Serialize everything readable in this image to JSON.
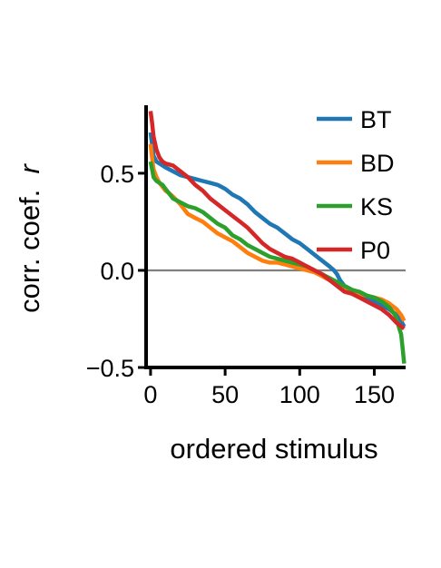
{
  "chart_data": {
    "type": "line",
    "xlabel": "ordered stimulus",
    "ylabel": "corr. coef.",
    "ylabel_symbol": "r",
    "xlim": [
      -3,
      171
    ],
    "ylim": [
      -0.5,
      0.85
    ],
    "xticks": [
      0,
      50,
      100,
      150
    ],
    "xtick_labels": [
      "0",
      "50",
      "100",
      "150"
    ],
    "yticks": [
      -0.5,
      0.0,
      0.5
    ],
    "ytick_labels": [
      "−0.5",
      "0.0",
      "0.5"
    ],
    "reference_line": {
      "y": 0.0,
      "color": "#808080"
    },
    "grid": false,
    "legend_position": "top-right",
    "series": [
      {
        "name": "BT",
        "color": "#1f77b4",
        "x": [
          0,
          1,
          2,
          4,
          6,
          8,
          10,
          15,
          20,
          25,
          30,
          35,
          40,
          45,
          50,
          55,
          60,
          65,
          70,
          75,
          80,
          85,
          90,
          95,
          100,
          105,
          110,
          115,
          120,
          123,
          125,
          127,
          130,
          135,
          140,
          145,
          150,
          155,
          160,
          165,
          168,
          170
        ],
        "y": [
          0.71,
          0.65,
          0.59,
          0.56,
          0.55,
          0.54,
          0.53,
          0.51,
          0.49,
          0.48,
          0.47,
          0.46,
          0.45,
          0.44,
          0.42,
          0.39,
          0.37,
          0.34,
          0.3,
          0.27,
          0.24,
          0.22,
          0.19,
          0.16,
          0.14,
          0.11,
          0.08,
          0.05,
          0.02,
          0.0,
          -0.02,
          -0.05,
          -0.08,
          -0.1,
          -0.12,
          -0.14,
          -0.16,
          -0.18,
          -0.2,
          -0.23,
          -0.26,
          -0.29
        ]
      },
      {
        "name": "BD",
        "color": "#ff7f0e",
        "x": [
          0,
          1,
          2,
          4,
          6,
          8,
          10,
          12,
          15,
          20,
          25,
          30,
          35,
          40,
          45,
          50,
          55,
          60,
          65,
          70,
          75,
          80,
          85,
          90,
          95,
          100,
          105,
          110,
          115,
          120,
          125,
          130,
          135,
          140,
          145,
          150,
          155,
          160,
          165,
          168,
          170
        ],
        "y": [
          0.65,
          0.58,
          0.52,
          0.48,
          0.45,
          0.43,
          0.41,
          0.4,
          0.38,
          0.34,
          0.29,
          0.27,
          0.25,
          0.22,
          0.19,
          0.17,
          0.15,
          0.12,
          0.09,
          0.07,
          0.05,
          0.04,
          0.04,
          0.03,
          0.02,
          0.01,
          0.0,
          -0.01,
          -0.03,
          -0.05,
          -0.07,
          -0.09,
          -0.11,
          -0.12,
          -0.13,
          -0.14,
          -0.15,
          -0.17,
          -0.2,
          -0.23,
          -0.26
        ]
      },
      {
        "name": "KS",
        "color": "#2ca02c",
        "x": [
          0,
          1,
          2,
          4,
          6,
          8,
          10,
          15,
          20,
          25,
          30,
          35,
          40,
          45,
          50,
          55,
          60,
          65,
          70,
          75,
          80,
          85,
          90,
          95,
          100,
          105,
          110,
          115,
          120,
          125,
          130,
          135,
          140,
          145,
          150,
          155,
          160,
          164,
          166,
          168,
          169,
          170
        ],
        "y": [
          0.56,
          0.52,
          0.48,
          0.46,
          0.45,
          0.44,
          0.42,
          0.37,
          0.35,
          0.33,
          0.32,
          0.3,
          0.27,
          0.24,
          0.22,
          0.18,
          0.16,
          0.13,
          0.11,
          0.09,
          0.07,
          0.06,
          0.05,
          0.04,
          0.03,
          0.02,
          0.0,
          -0.02,
          -0.04,
          -0.06,
          -0.08,
          -0.1,
          -0.11,
          -0.13,
          -0.14,
          -0.16,
          -0.19,
          -0.23,
          -0.28,
          -0.33,
          -0.4,
          -0.48
        ]
      },
      {
        "name": "P0",
        "color": "#d62728",
        "x": [
          0,
          1,
          2,
          4,
          6,
          8,
          10,
          15,
          20,
          25,
          30,
          35,
          40,
          45,
          50,
          55,
          60,
          65,
          70,
          75,
          80,
          85,
          90,
          95,
          100,
          105,
          110,
          115,
          120,
          125,
          130,
          135,
          140,
          145,
          150,
          155,
          160,
          165,
          170
        ],
        "y": [
          0.82,
          0.76,
          0.69,
          0.62,
          0.58,
          0.56,
          0.55,
          0.54,
          0.51,
          0.48,
          0.44,
          0.41,
          0.37,
          0.34,
          0.31,
          0.28,
          0.25,
          0.22,
          0.18,
          0.14,
          0.11,
          0.09,
          0.07,
          0.06,
          0.04,
          0.02,
          0.0,
          -0.02,
          -0.05,
          -0.08,
          -0.11,
          -0.12,
          -0.14,
          -0.16,
          -0.18,
          -0.2,
          -0.23,
          -0.27,
          -0.3
        ]
      }
    ]
  }
}
